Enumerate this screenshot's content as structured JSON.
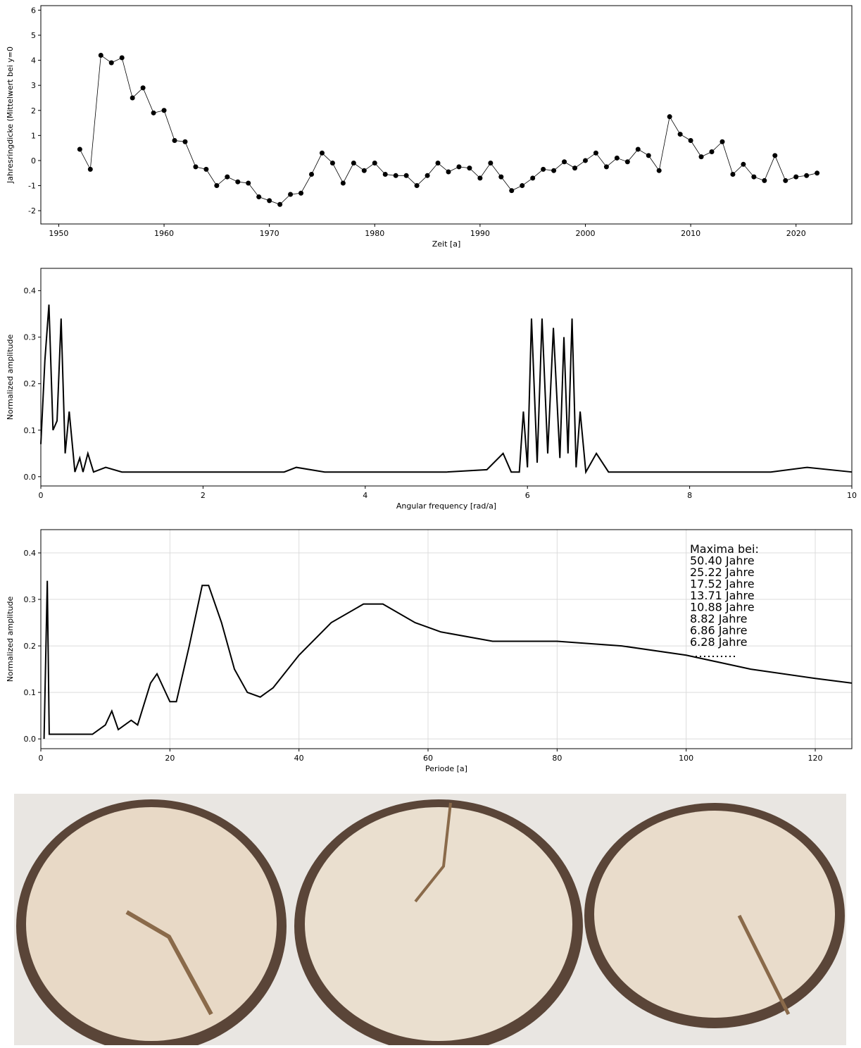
{
  "chart_data": [
    {
      "type": "line",
      "markers": true,
      "grid": false,
      "xlabel": "Zeit [a]",
      "ylabel": "Jahresringdicke (Mittelwert bei y=0",
      "xlim": [
        1948.3,
        2025.3
      ],
      "ylim": [
        -2.53,
        6.18
      ],
      "xticks": [
        1950,
        1960,
        1970,
        1980,
        1990,
        2000,
        2010,
        2020
      ],
      "yticks": [
        -2,
        -1,
        0,
        1,
        2,
        3,
        4,
        5,
        6
      ],
      "x": [
        1952,
        1953,
        1954,
        1955,
        1956,
        1957,
        1958,
        1959,
        1960,
        1961,
        1962,
        1963,
        1964,
        1965,
        1966,
        1967,
        1968,
        1969,
        1970,
        1971,
        1972,
        1973,
        1974,
        1975,
        1976,
        1977,
        1978,
        1979,
        1980,
        1981,
        1982,
        1983,
        1984,
        1985,
        1986,
        1987,
        1988,
        1989,
        1990,
        1991,
        1992,
        1993,
        1994,
        1995,
        1996,
        1997,
        1998,
        1999,
        2000,
        2001,
        2002,
        2003,
        2004,
        2005,
        2006,
        2007,
        2008,
        2009,
        2010,
        2011,
        2012,
        2013,
        2014,
        2015,
        2016,
        2017,
        2018,
        2019,
        2020,
        2021,
        2022
      ],
      "series": [
        {
          "color": "#000000",
          "values": [
            0.45,
            -0.35,
            4.2,
            3.9,
            4.1,
            2.5,
            2.9,
            1.9,
            2.0,
            0.8,
            0.75,
            -0.25,
            -0.35,
            -1.0,
            -0.65,
            -0.85,
            -0.9,
            -1.45,
            -1.6,
            -1.75,
            -1.35,
            -1.3,
            -0.55,
            0.3,
            -0.1,
            -0.9,
            -0.1,
            -0.4,
            -0.1,
            -0.55,
            -0.6,
            -0.6,
            -1.0,
            -0.6,
            -0.1,
            -0.45,
            -0.25,
            -0.3,
            -0.7,
            -0.1,
            -0.65,
            -1.2,
            -1.0,
            -0.7,
            -0.35,
            -0.4,
            -0.05,
            -0.3,
            0.0,
            0.3,
            -0.25,
            0.1,
            -0.05,
            0.45,
            0.2,
            -0.4,
            1.75,
            1.05,
            0.8,
            0.15,
            0.35,
            0.75,
            -0.55,
            -0.15,
            -0.65,
            -0.8,
            0.2,
            -0.8,
            -0.65,
            -0.6,
            -0.5
          ]
        }
      ]
    },
    {
      "type": "line",
      "markers": false,
      "grid": false,
      "xlabel": "Angular frequency [rad/a]",
      "ylabel": "Normalized amplitude",
      "xlim": [
        0,
        10
      ],
      "ylim": [
        -0.02,
        0.448
      ],
      "xticks": [
        0,
        2,
        4,
        6,
        8,
        10
      ],
      "yticks": [
        0.0,
        0.1,
        0.2,
        0.3,
        0.4
      ],
      "x": [
        0,
        0.05,
        0.1,
        0.15,
        0.2,
        0.25,
        0.3,
        0.35,
        0.42,
        0.48,
        0.52,
        0.58,
        0.65,
        0.8,
        1.0,
        1.5,
        2.0,
        2.5,
        3.0,
        3.15,
        3.5,
        4.0,
        4.5,
        5.0,
        5.5,
        5.7,
        5.8,
        5.9,
        5.95,
        6.0,
        6.05,
        6.12,
        6.18,
        6.25,
        6.32,
        6.4,
        6.45,
        6.5,
        6.55,
        6.6,
        6.65,
        6.72,
        6.85,
        7.0,
        7.5,
        8.0,
        8.5,
        9.0,
        9.45,
        10
      ],
      "series": [
        {
          "color": "#000000",
          "values": [
            0.07,
            0.25,
            0.37,
            0.1,
            0.12,
            0.34,
            0.05,
            0.14,
            0.01,
            0.04,
            0.01,
            0.05,
            0.01,
            0.02,
            0.01,
            0.01,
            0.01,
            0.01,
            0.01,
            0.02,
            0.01,
            0.01,
            0.01,
            0.01,
            0.015,
            0.05,
            0.01,
            0.01,
            0.14,
            0.02,
            0.34,
            0.03,
            0.34,
            0.05,
            0.32,
            0.04,
            0.3,
            0.05,
            0.34,
            0.02,
            0.14,
            0.01,
            0.05,
            0.01,
            0.01,
            0.01,
            0.01,
            0.01,
            0.02,
            0.01
          ]
        }
      ]
    },
    {
      "type": "line",
      "markers": false,
      "grid": true,
      "xlabel": "Periode [a]",
      "ylabel": "Normalized amplitude",
      "xlim": [
        0,
        125.67
      ],
      "ylim": [
        -0.021,
        0.45
      ],
      "xticks": [
        0,
        20,
        40,
        60,
        80,
        100,
        120
      ],
      "yticks": [
        0.0,
        0.1,
        0.2,
        0.3,
        0.4
      ],
      "annotation": [
        "Maxima bei:",
        "50.40 Jahre",
        "25.22 Jahre",
        "17.52 Jahre",
        "13.71 Jahre",
        "10.88 Jahre",
        "8.82 Jahre",
        "6.86 Jahre",
        "6.28 Jahre"
      ],
      "x": [
        0.5,
        1,
        1.3,
        2,
        5,
        8,
        10,
        11,
        12,
        14,
        15,
        17,
        18,
        19,
        20,
        21,
        23,
        25,
        26,
        28,
        30,
        32,
        34,
        36,
        40,
        45,
        50,
        53,
        58,
        62,
        70,
        80,
        90,
        100,
        110,
        120,
        125.67
      ],
      "series": [
        {
          "color": "#000000",
          "values": [
            0.0,
            0.34,
            0.01,
            0.01,
            0.01,
            0.01,
            0.03,
            0.06,
            0.02,
            0.04,
            0.03,
            0.12,
            0.14,
            0.11,
            0.08,
            0.08,
            0.2,
            0.33,
            0.33,
            0.25,
            0.15,
            0.1,
            0.09,
            0.11,
            0.18,
            0.25,
            0.29,
            0.29,
            0.25,
            0.23,
            0.21,
            0.21,
            0.2,
            0.18,
            0.15,
            0.13,
            0.12
          ]
        }
      ]
    }
  ]
}
